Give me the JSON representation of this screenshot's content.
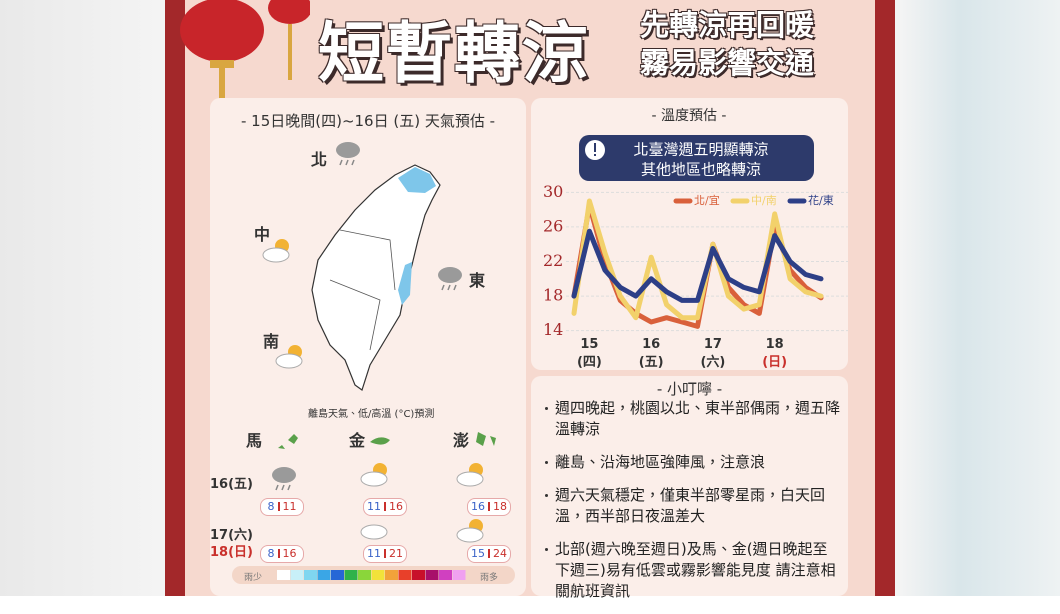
{
  "header": {
    "title": "短暫轉涼",
    "subtitle": [
      "先轉涼再回暖",
      "霧易影響交通"
    ]
  },
  "map_panel": {
    "title": "- 15日晚間(四)~16日 (五) 天氣預估 -",
    "regions": [
      "北",
      "中",
      "東",
      "南"
    ],
    "note": "離島天氣、低/高溫 (°C)預測",
    "islands": [
      "馬",
      "金",
      "澎"
    ],
    "rows": [
      {
        "date": "16(五)",
        "temps": [
          [
            8,
            11
          ],
          [
            11,
            16
          ],
          [
            16,
            18
          ]
        ]
      },
      {
        "date": "17(六)"
      },
      {
        "date": "18(日)",
        "temps": [
          [
            8,
            16
          ],
          [
            11,
            21
          ],
          [
            15,
            24
          ]
        ]
      }
    ],
    "rain_legend": [
      "雨少",
      "雨多"
    ]
  },
  "chart_data": {
    "type": "line",
    "title": "- 溫度預估 -",
    "annotation": [
      "北臺灣週五明顯轉涼",
      "其他地區也略轉涼"
    ],
    "categories": [
      null,
      "15",
      null,
      null,
      null,
      "16",
      null,
      null,
      null,
      "17",
      null,
      null,
      null,
      "18",
      null,
      null,
      null
    ],
    "weekdays": [
      null,
      "(四)",
      null,
      null,
      null,
      "(五)",
      null,
      null,
      null,
      "(六)",
      null,
      null,
      null,
      "(日)",
      null,
      null,
      null
    ],
    "series": [
      {
        "name": "北/宜",
        "color": "#d9603b",
        "values": [
          18,
          28.5,
          22,
          17.5,
          16,
          15,
          15.5,
          15,
          14.5,
          24,
          19,
          17,
          16,
          26,
          21,
          19,
          17.8
        ]
      },
      {
        "name": "中/南",
        "color": "#f2d16b",
        "values": [
          16,
          29,
          23,
          18,
          15.5,
          22.5,
          17,
          15.5,
          15.5,
          24,
          18,
          16.5,
          17,
          27.5,
          20,
          18.5,
          18
        ]
      },
      {
        "name": "花/東",
        "color": "#2d3f87",
        "values": [
          18,
          25.5,
          21,
          19,
          18,
          20,
          18.5,
          17.5,
          17.5,
          23.5,
          20,
          19,
          18.5,
          25,
          22,
          20.5,
          20
        ]
      }
    ],
    "ylim": [
      13.5,
      30.5
    ],
    "yticks": [
      14,
      18,
      22,
      26,
      30
    ],
    "grid": true
  },
  "tips": {
    "title": "- 小叮嚀 -",
    "items": [
      "週四晚起，桃園以北、東半部偶雨，週五降溫轉涼",
      "離島、沿海地區強陣風，注意浪",
      "週六天氣穩定，僅東半部零星雨，白天回溫，西半部日夜溫差大",
      "北部(週六晚至週日)及馬、金(週日晚起至下週三)易有低雲或霧影響能見度 請注意相關航班資訊"
    ]
  }
}
